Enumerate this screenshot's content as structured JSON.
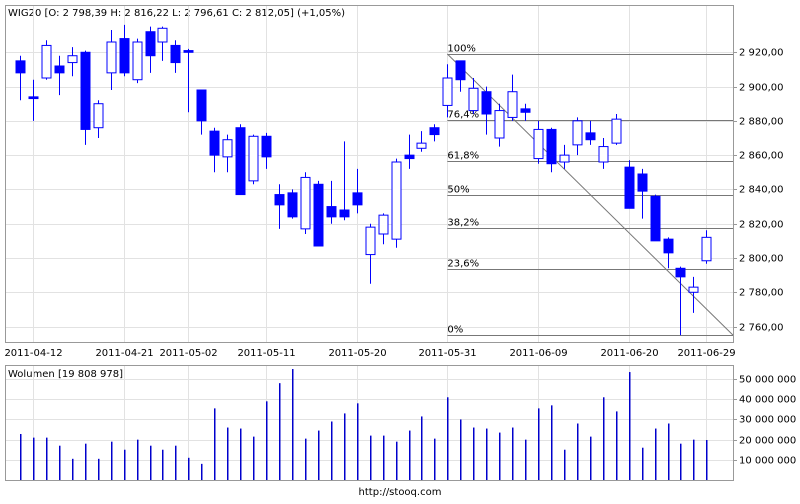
{
  "chart_data": {
    "type": "candlestick",
    "title": "WIG20 [O: 2 798,39  H: 2 816,22  L: 2 796,61  C: 2 812,05] (+1,05%)",
    "footer": "http://stooq.com",
    "color": "#0000ff",
    "categories": [
      null,
      "2011-04-12",
      null,
      null,
      null,
      null,
      null,
      null,
      "2011-04-21",
      null,
      null,
      null,
      null,
      "2011-05-02",
      null,
      null,
      null,
      null,
      null,
      "2011-05-11",
      null,
      null,
      null,
      null,
      null,
      null,
      "2011-05-20",
      null,
      null,
      null,
      null,
      null,
      null,
      "2011-05-31",
      null,
      null,
      null,
      null,
      null,
      null,
      "2011-06-09",
      null,
      null,
      null,
      null,
      null,
      null,
      "2011-06-20",
      null,
      null,
      null,
      null,
      null,
      "2011-06-29"
    ],
    "open": [
      2915,
      2894,
      2905,
      2912,
      2914,
      2920,
      2876,
      2908,
      2928,
      2904,
      2932,
      2926,
      2924,
      2921,
      2898,
      2874,
      2859,
      2876,
      2845,
      2871,
      2837,
      2838,
      2817,
      2843,
      2830,
      2828,
      2838,
      2802,
      2814,
      2811,
      2860,
      2864,
      2876,
      2889,
      2915,
      2886,
      2897,
      2870,
      2882,
      2887,
      2858,
      2875,
      2856,
      2866,
      2873,
      2856,
      2867,
      2853,
      2849,
      2836,
      2811,
      2794,
      2780,
      2798.39
    ],
    "high": [
      2918,
      2904,
      2927,
      2918,
      2923,
      2921,
      2892,
      2933,
      2936,
      2928,
      2935,
      2935,
      2927,
      2922,
      2898,
      2876,
      2872,
      2878,
      2872,
      2873,
      2843,
      2840,
      2850,
      2845,
      2845,
      2868,
      2852,
      2820,
      2826,
      2858,
      2872,
      2874,
      2878,
      2913,
      2915,
      2905,
      2900,
      2890,
      2907,
      2890,
      2880,
      2876,
      2866,
      2882,
      2880,
      2870,
      2884,
      2857,
      2852,
      2837,
      2812,
      2795,
      2789,
      2816.22
    ],
    "low": [
      2892,
      2880,
      2904,
      2895,
      2906,
      2866,
      2870,
      2898,
      2906,
      2902,
      2908,
      2915,
      2908,
      2885,
      2872,
      2850,
      2850,
      2837,
      2843,
      2852,
      2817,
      2823,
      2814,
      2807,
      2820,
      2822,
      2826,
      2785,
      2808,
      2806,
      2852,
      2862,
      2868,
      2882,
      2897,
      2884,
      2872,
      2865,
      2880,
      2880,
      2855,
      2850,
      2852,
      2860,
      2866,
      2852,
      2866,
      2829,
      2823,
      2810,
      2794,
      2755,
      2768,
      2796.61
    ],
    "close": [
      2908,
      2893,
      2924,
      2908,
      2918,
      2875,
      2890,
      2926,
      2908,
      2926,
      2918,
      2934,
      2914,
      2920,
      2880,
      2860,
      2869,
      2837,
      2871,
      2859,
      2831,
      2824,
      2847,
      2807,
      2824,
      2824,
      2831,
      2818,
      2825,
      2856,
      2858,
      2867,
      2872,
      2905,
      2904,
      2899,
      2884,
      2886,
      2897,
      2885,
      2875,
      2855,
      2860,
      2880,
      2869,
      2865,
      2881,
      2829,
      2839,
      2810,
      2803,
      2789,
      2783,
      2812.05
    ],
    "ylim": [
      2751,
      2947
    ],
    "yticks": [
      {
        "value": 2760,
        "label": "2 760,00"
      },
      {
        "value": 2780,
        "label": "2 780,00"
      },
      {
        "value": 2800,
        "label": "2 800,00"
      },
      {
        "value": 2820,
        "label": "2 820,00"
      },
      {
        "value": 2840,
        "label": "2 840,00"
      },
      {
        "value": 2860,
        "label": "2 860,00"
      },
      {
        "value": 2880,
        "label": "2 880,00"
      },
      {
        "value": 2900,
        "label": "2 900,00"
      },
      {
        "value": 2920,
        "label": "2 920,00"
      }
    ],
    "fibonacci": {
      "start_index": 33,
      "levels": [
        {
          "value": 2755,
          "label": "0%"
        },
        {
          "value": 2793.7,
          "label": "23,6%"
        },
        {
          "value": 2817.6,
          "label": "38,2%"
        },
        {
          "value": 2837,
          "label": "50%"
        },
        {
          "value": 2856.4,
          "label": "61,8%"
        },
        {
          "value": 2880.3,
          "label": "76,4%"
        },
        {
          "value": 2919,
          "label": "100%"
        }
      ]
    },
    "volume": {
      "label": "Wolumen [19 808 978]",
      "color": "#0000cc",
      "values": [
        22800000,
        21000000,
        21000000,
        17000000,
        10500000,
        18000000,
        10500000,
        19000000,
        15000000,
        20000000,
        17000000,
        15000000,
        17000000,
        11000000,
        8000000,
        35500000,
        26000000,
        25500000,
        21500000,
        39000000,
        48000000,
        55000000,
        20500000,
        24500000,
        29000000,
        33000000,
        38000000,
        22000000,
        22000000,
        19000000,
        24500000,
        31500000,
        20500000,
        41000000,
        30000000,
        26000000,
        25500000,
        23500000,
        26000000,
        20000000,
        35500000,
        37000000,
        15000000,
        28000000,
        21500000,
        41000000,
        34000000,
        53500000,
        16000000,
        25500000,
        28000000,
        18000000,
        20000000,
        19808978
      ],
      "ylim": [
        0,
        56500000
      ],
      "yticks": [
        {
          "value": 10000000,
          "label": "10 000 000"
        },
        {
          "value": 20000000,
          "label": "20 000 000"
        },
        {
          "value": 30000000,
          "label": "30 000 000"
        },
        {
          "value": 40000000,
          "label": "40 000 000"
        },
        {
          "value": 50000000,
          "label": "50 000 000"
        }
      ]
    }
  }
}
